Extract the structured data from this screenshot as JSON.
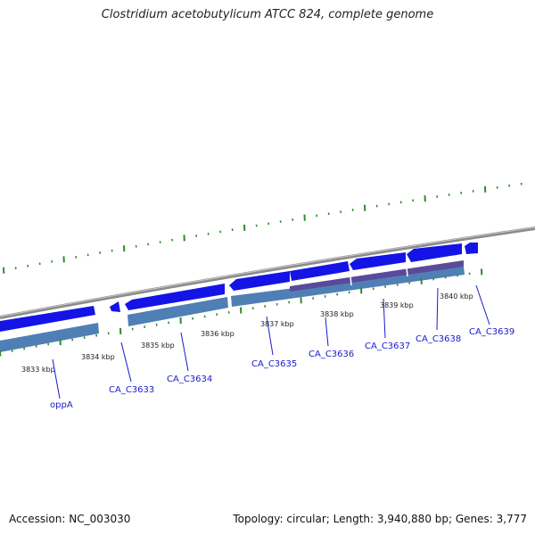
{
  "title": "Clostridium acetobutylicum ATCC 824, complete genome",
  "footer": {
    "accession": "Accession: NC_003030",
    "summary": "Topology: circular; Length: 3,940,880 bp; Genes: 3,777"
  },
  "colors": {
    "backbone": "#8a8a8a",
    "tick": "#2e8b2e",
    "gene_forward": "#1414e6",
    "gene_cds": "#4f7fb5",
    "gene_other": "#5a4a9a",
    "label": "#1a1acc"
  },
  "scale_labels": [
    "3833 kbp",
    "3834 kbp",
    "3835 kbp",
    "3836 kbp",
    "3837 kbp",
    "3838 kbp",
    "3839 kbp",
    "3840 kbp"
  ],
  "gene_labels": [
    "oppA",
    "CA_C3633",
    "CA_C3634",
    "CA_C3635",
    "CA_C3636",
    "CA_C3637",
    "CA_C3638",
    "CA_C3639"
  ]
}
